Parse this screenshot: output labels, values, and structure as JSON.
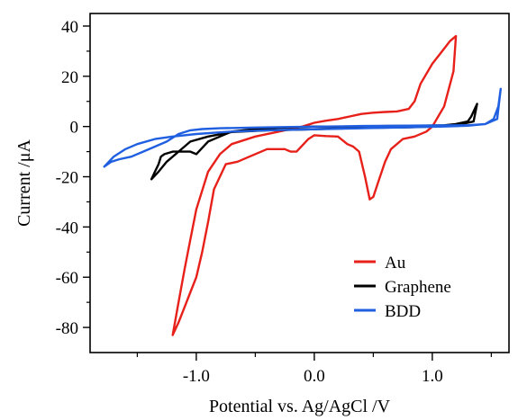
{
  "chart_data": {
    "type": "line",
    "title": "",
    "xlabel": "Potential vs. Ag/AgCl /V",
    "ylabel": "Current /μA",
    "xlim": [
      -1.9,
      1.65
    ],
    "ylim": [
      -90,
      45
    ],
    "x_ticks": [
      -1.0,
      0.0,
      1.0
    ],
    "x_tick_labels": [
      "-1.0",
      "0.0",
      "1.0"
    ],
    "y_ticks": [
      40,
      20,
      0,
      -20,
      -40,
      -60,
      -80
    ],
    "y_tick_labels": [
      "40",
      "20",
      "0",
      "-20",
      "-40",
      "-60",
      "-80"
    ],
    "grid": false,
    "legend": "bottom-right",
    "series": [
      {
        "name": "Au",
        "color": "#e8201a",
        "x": [
          -1.2,
          -1.15,
          -1.1,
          -1.05,
          -1.0,
          -0.9,
          -0.8,
          -0.7,
          -0.5,
          -0.3,
          -0.1,
          0.0,
          0.1,
          0.2,
          0.3,
          0.4,
          0.5,
          0.6,
          0.7,
          0.8,
          0.85,
          0.9,
          1.0,
          1.1,
          1.15,
          1.2,
          1.18,
          1.1,
          1.0,
          0.95,
          0.85,
          0.75,
          0.65,
          0.6,
          0.55,
          0.5,
          0.47,
          0.43,
          0.38,
          0.33,
          0.28,
          0.2,
          0.1,
          0.0,
          -0.05,
          -0.15,
          -0.2,
          -0.25,
          -0.4,
          -0.55,
          -0.65,
          -0.75,
          -0.85,
          -0.9,
          -0.95,
          -1.0,
          -1.05,
          -1.1,
          -1.15,
          -1.2
        ],
        "y": [
          -83,
          -70,
          -57,
          -45,
          -33,
          -18,
          -11,
          -7,
          -4,
          -2,
          0,
          1.5,
          2.3,
          3,
          4,
          5,
          5.5,
          5.8,
          6,
          7,
          10,
          17,
          25,
          31,
          34,
          36,
          22,
          8,
          0,
          -2,
          -4,
          -5,
          -9,
          -14,
          -21,
          -28,
          -29,
          -20,
          -10,
          -8,
          -7,
          -4,
          -3.8,
          -3.5,
          -5,
          -10,
          -10,
          -9,
          -9,
          -12,
          -14,
          -15,
          -25,
          -38,
          -50,
          -60,
          -66,
          -72,
          -78,
          -83
        ]
      },
      {
        "name": "Graphene",
        "color": "#000000",
        "x": [
          -1.38,
          -1.35,
          -1.32,
          -1.3,
          -1.27,
          -1.2,
          -1.1,
          -1.05,
          -1.0,
          -0.9,
          -0.8,
          -0.7,
          -0.5,
          -0.3,
          0.0,
          0.3,
          0.6,
          0.9,
          1.1,
          1.2,
          1.3,
          1.33,
          1.36,
          1.38,
          1.35,
          1.2,
          1.0,
          0.8,
          0.5,
          0.2,
          -0.1,
          -0.4,
          -0.7,
          -0.9,
          -1.05,
          -1.15,
          -1.25,
          -1.32,
          -1.38
        ],
        "y": [
          -21,
          -18,
          -15,
          -12,
          -11,
          -10,
          -10,
          -10,
          -11,
          -6,
          -4,
          -2,
          -1,
          -0.5,
          0,
          0,
          0.2,
          0.3,
          0.5,
          1,
          2,
          4,
          7,
          9,
          2,
          0.5,
          0,
          -0.3,
          -0.5,
          -0.8,
          -1.2,
          -1.5,
          -2.2,
          -4,
          -6,
          -10,
          -14,
          -18,
          -21
        ]
      },
      {
        "name": "BDD",
        "color": "#1f5fe0",
        "x": [
          -1.78,
          -1.72,
          -1.65,
          -1.55,
          -1.45,
          -1.35,
          -1.25,
          -1.15,
          -1.05,
          -0.95,
          -0.8,
          -0.5,
          -0.2,
          0.1,
          0.4,
          0.7,
          1.0,
          1.3,
          1.45,
          1.52,
          1.56,
          1.58,
          1.55,
          1.45,
          1.3,
          1.1,
          0.8,
          0.5,
          0.2,
          -0.1,
          -0.4,
          -0.7,
          -1.0,
          -1.2,
          -1.35,
          -1.5,
          -1.6,
          -1.7,
          -1.78
        ],
        "y": [
          -16,
          -14,
          -13,
          -12,
          -10,
          -8,
          -6,
          -3,
          -1.5,
          -1,
          -0.7,
          -0.4,
          -0.2,
          0,
          0.2,
          0.3,
          0.4,
          0.5,
          1,
          3,
          8,
          15,
          3,
          1,
          0.3,
          0,
          -0.3,
          -0.6,
          -0.9,
          -1.2,
          -1.5,
          -2,
          -3,
          -4,
          -5,
          -7,
          -9,
          -12,
          -16
        ]
      }
    ]
  }
}
